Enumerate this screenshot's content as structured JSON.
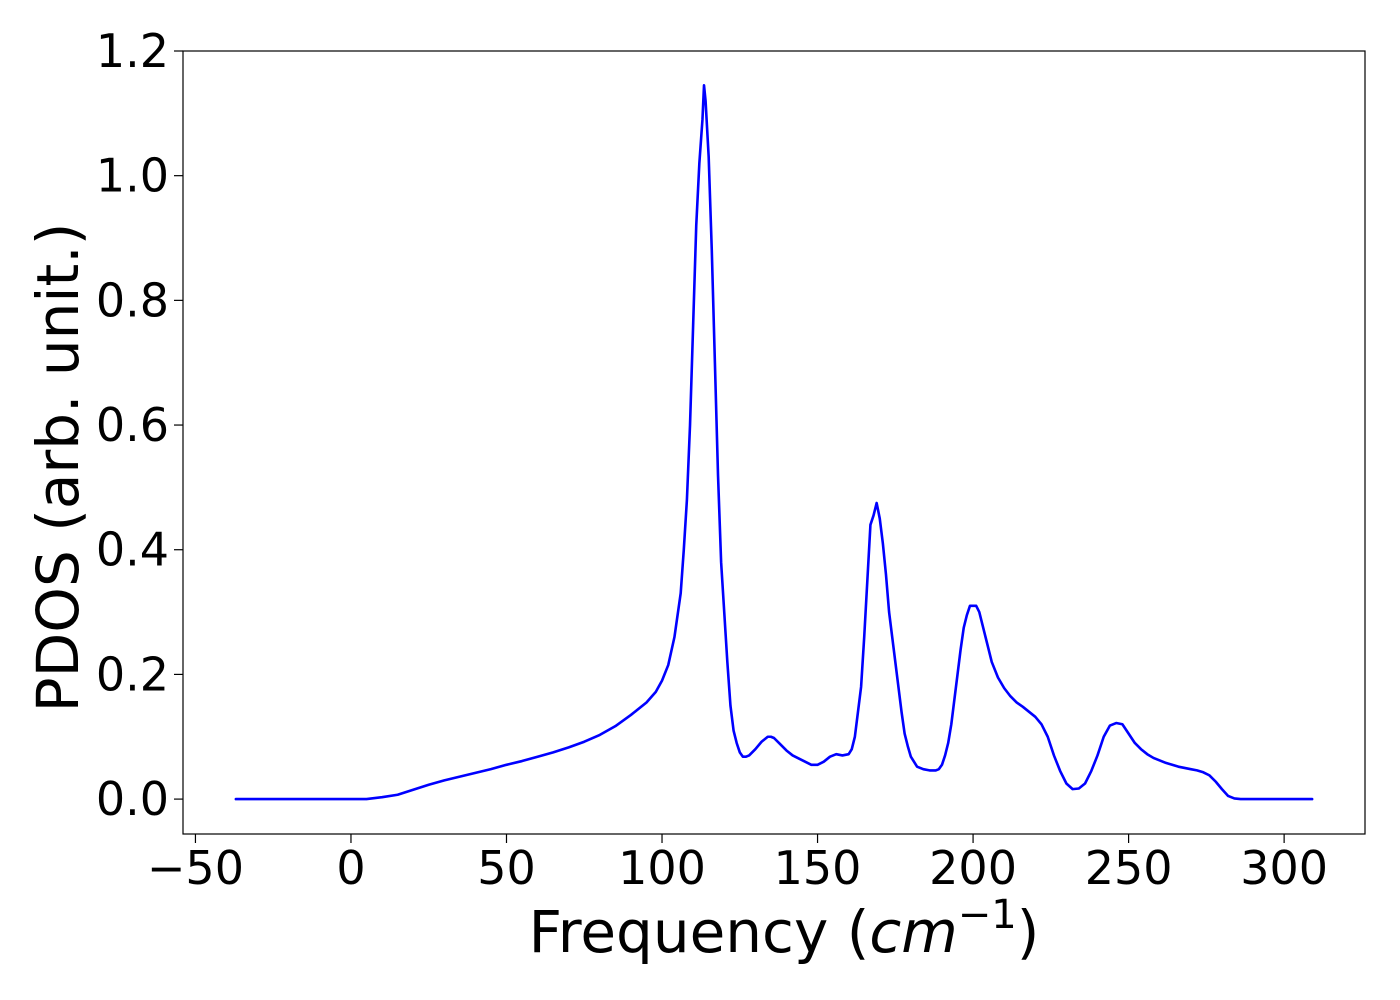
{
  "chart_data": {
    "type": "line",
    "title": "",
    "xlabel": "Frequency (",
    "xlabel_unit_base": "cm",
    "xlabel_unit_exp": "−1",
    "xlabel_close": ")",
    "ylabel": "PDOS (arb. unit.)",
    "xlim": [
      -54,
      326
    ],
    "ylim": [
      -0.056,
      1.2
    ],
    "xticks": [
      -50,
      0,
      50,
      100,
      150,
      200,
      250,
      300
    ],
    "xtick_labels": [
      "−50",
      "0",
      "50",
      "100",
      "150",
      "200",
      "250",
      "300"
    ],
    "yticks": [
      0.0,
      0.2,
      0.4,
      0.6,
      0.8,
      1.0,
      1.2
    ],
    "ytick_labels": [
      "0.0",
      "0.2",
      "0.4",
      "0.6",
      "0.8",
      "1.0",
      "1.2"
    ],
    "grid": false,
    "legend": "none",
    "series": [
      {
        "color": "#0000ff",
        "x": [
          -37,
          -20,
          -10,
          0,
          5,
          10,
          15,
          20,
          25,
          30,
          35,
          40,
          45,
          50,
          55,
          60,
          65,
          70,
          75,
          80,
          85,
          90,
          95,
          98,
          100,
          102,
          104,
          106,
          107,
          108,
          109,
          110,
          111,
          112,
          113,
          113.5,
          114,
          115,
          116,
          117,
          118,
          119,
          120,
          121,
          122,
          123,
          124,
          125,
          126,
          127,
          128,
          130,
          132,
          134,
          135,
          136,
          138,
          140,
          142,
          144,
          146,
          148,
          150,
          152,
          154,
          156,
          158,
          160,
          161,
          162,
          163,
          164,
          165,
          166,
          167,
          168,
          169,
          170,
          171,
          172,
          173,
          174,
          175,
          176,
          177,
          178,
          179,
          180,
          182,
          184,
          186,
          188,
          189,
          190,
          191,
          192,
          193,
          194,
          195,
          196,
          197,
          198,
          199,
          200,
          201,
          202,
          203,
          204,
          205,
          206,
          208,
          210,
          212,
          214,
          216,
          218,
          220,
          222,
          224,
          226,
          228,
          230,
          232,
          234,
          236,
          238,
          240,
          242,
          244,
          246,
          248,
          250,
          252,
          254,
          256,
          258,
          260,
          262,
          264,
          266,
          268,
          270,
          272,
          274,
          276,
          278,
          280,
          282,
          284,
          286,
          290,
          300,
          309
        ],
        "y": [
          0.0,
          0.0,
          0.0,
          0.0,
          0.0,
          0.003,
          0.007,
          0.015,
          0.023,
          0.03,
          0.036,
          0.042,
          0.048,
          0.055,
          0.061,
          0.068,
          0.075,
          0.083,
          0.092,
          0.103,
          0.117,
          0.135,
          0.155,
          0.172,
          0.19,
          0.215,
          0.26,
          0.33,
          0.4,
          0.48,
          0.6,
          0.76,
          0.92,
          1.02,
          1.09,
          1.145,
          1.12,
          1.03,
          0.88,
          0.7,
          0.52,
          0.38,
          0.3,
          0.22,
          0.15,
          0.11,
          0.09,
          0.075,
          0.068,
          0.068,
          0.07,
          0.08,
          0.092,
          0.1,
          0.1,
          0.098,
          0.088,
          0.078,
          0.07,
          0.065,
          0.06,
          0.055,
          0.055,
          0.06,
          0.068,
          0.072,
          0.07,
          0.072,
          0.08,
          0.1,
          0.14,
          0.18,
          0.26,
          0.35,
          0.44,
          0.455,
          0.475,
          0.45,
          0.41,
          0.36,
          0.3,
          0.26,
          0.22,
          0.18,
          0.14,
          0.105,
          0.085,
          0.068,
          0.052,
          0.048,
          0.046,
          0.046,
          0.048,
          0.055,
          0.07,
          0.09,
          0.12,
          0.16,
          0.2,
          0.24,
          0.275,
          0.295,
          0.31,
          0.31,
          0.31,
          0.3,
          0.28,
          0.26,
          0.24,
          0.22,
          0.195,
          0.178,
          0.165,
          0.155,
          0.148,
          0.14,
          0.132,
          0.12,
          0.1,
          0.07,
          0.045,
          0.025,
          0.016,
          0.017,
          0.025,
          0.045,
          0.07,
          0.1,
          0.118,
          0.122,
          0.12,
          0.105,
          0.09,
          0.08,
          0.072,
          0.066,
          0.062,
          0.058,
          0.055,
          0.052,
          0.05,
          0.048,
          0.046,
          0.043,
          0.038,
          0.028,
          0.016,
          0.005,
          0.001,
          0.0,
          0.0,
          0.0,
          0.0
        ]
      }
    ]
  }
}
